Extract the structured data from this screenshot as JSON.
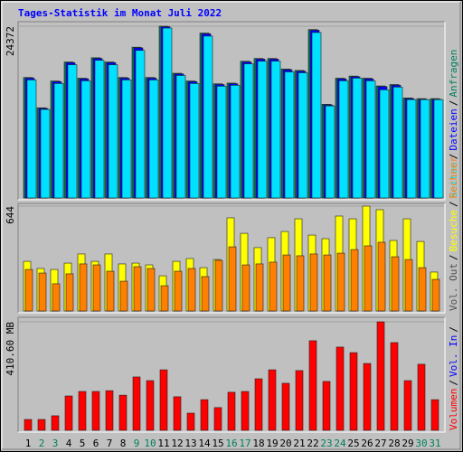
{
  "title": "Tages-Statistik im Monat Juli 2022",
  "categories": [
    "1",
    "2",
    "3",
    "4",
    "5",
    "6",
    "7",
    "8",
    "9",
    "10",
    "11",
    "12",
    "13",
    "14",
    "15",
    "16",
    "17",
    "18",
    "19",
    "20",
    "21",
    "22",
    "23",
    "24",
    "25",
    "26",
    "27",
    "28",
    "29",
    "30",
    "31"
  ],
  "category_colors": [
    "#000000",
    "#00805c",
    "#00805c",
    "#000000",
    "#000000",
    "#000000",
    "#000000",
    "#000000",
    "#00805c",
    "#00805c",
    "#000000",
    "#000000",
    "#000000",
    "#000000",
    "#000000",
    "#00805c",
    "#00805c",
    "#000000",
    "#000000",
    "#000000",
    "#000000",
    "#000000",
    "#00805c",
    "#00805c",
    "#000000",
    "#000000",
    "#000000",
    "#000000",
    "#000000",
    "#00805c",
    "#00805c"
  ],
  "separator": "/",
  "chart_data": [
    {
      "type": "bar",
      "ylim": [
        0,
        24372
      ],
      "yticks": [
        24372
      ],
      "series": [
        {
          "name": "Anfragen",
          "color": "#00805c",
          "values": [
            17100,
            12800,
            16600,
            19300,
            17000,
            19900,
            19300,
            17100,
            21400,
            17100,
            24372,
            17700,
            16600,
            23400,
            16200,
            16300,
            19400,
            19800,
            19800,
            18300,
            18100,
            23900,
            13300,
            17000,
            17300,
            17000,
            15900,
            16100,
            14200,
            14100,
            14100
          ]
        },
        {
          "name": "Dateien",
          "color": "#0000ff",
          "values": [
            17000,
            12700,
            16500,
            19200,
            16900,
            19800,
            19200,
            17000,
            21300,
            17000,
            24300,
            17600,
            16500,
            23300,
            16100,
            16200,
            19300,
            19700,
            19700,
            18200,
            18000,
            23800,
            13200,
            16900,
            17200,
            16900,
            15800,
            16000,
            14100,
            14000,
            14000
          ]
        },
        {
          "name": "Seiten",
          "color": "#00e0ff",
          "values": [
            16751,
            12563,
            16243,
            18908,
            16624,
            19543,
            18908,
            16751,
            20939,
            16751,
            24111,
            17385,
            16243,
            22969,
            15863,
            15989,
            19035,
            19416,
            19416,
            17893,
            17766,
            23477,
            13071,
            16624,
            17005,
            16624,
            15355,
            15736,
            13959,
            13959,
            13959
          ]
        }
      ]
    },
    {
      "type": "bar",
      "ylim": [
        0,
        644
      ],
      "yticks": [
        644
      ],
      "legend_extra": {
        "name": "Vol. Out",
        "color": "#505050"
      },
      "series": [
        {
          "name": "Besuche",
          "color": "#ffff00",
          "values": [
            305,
            261,
            255,
            294,
            350,
            305,
            350,
            289,
            294,
            283,
            216,
            305,
            322,
            266,
            316,
            572,
            477,
            389,
            450,
            488,
            566,
            466,
            444,
            583,
            566,
            644,
            622,
            433,
            566,
            427,
            239
          ]
        },
        {
          "name": "Rechner",
          "color": "#ff8000",
          "values": [
            255,
            233,
            167,
            228,
            289,
            283,
            244,
            183,
            272,
            261,
            155,
            244,
            261,
            211,
            311,
            394,
            283,
            289,
            300,
            344,
            339,
            350,
            344,
            355,
            377,
            400,
            422,
            333,
            316,
            266,
            194
          ]
        }
      ]
    },
    {
      "type": "bar",
      "ylim": [
        0,
        410.6
      ],
      "yticks": [
        {
          "value": 410.6,
          "label": "410.60 MB"
        }
      ],
      "legend_extra": {
        "name": "Vol. In",
        "color": "#0000ff"
      },
      "series": [
        {
          "name": "Volumen",
          "color": "#ff0000",
          "values": [
            41,
            41,
            55,
            130,
            147,
            147,
            150,
            133,
            202,
            188,
            229,
            127,
            65,
            116,
            86,
            144,
            147,
            195,
            229,
            178,
            226,
            339,
            185,
            315,
            294,
            253,
            410.6,
            332,
            188,
            250,
            116
          ]
        }
      ]
    }
  ]
}
